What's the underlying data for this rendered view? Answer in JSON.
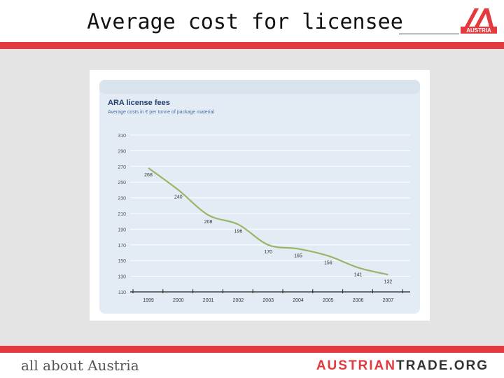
{
  "slide": {
    "title": "Average cost for licensee",
    "footer_left": "all about Austria",
    "footer_right_part1": "AUSTRIAN",
    "footer_right_part2": "TRADE.ORG",
    "logo_text": "AUSTRIA"
  },
  "colors": {
    "accent": "#e23a3f",
    "chart_panel": "#e3ebf4",
    "chart_header": "#d9e3ee",
    "line": "#9ab56a",
    "title_text": "#23406e"
  },
  "chart_data": {
    "type": "line",
    "title": "ARA license fees",
    "subtitle": "Average costs in € per tonne of package material",
    "categories": [
      "1999",
      "2000",
      "2001",
      "2002",
      "2003",
      "2004",
      "2005",
      "2006",
      "2007"
    ],
    "yticks": [
      110,
      130,
      150,
      170,
      190,
      210,
      230,
      250,
      270,
      290,
      310
    ],
    "ylim": [
      110,
      310
    ],
    "series": [
      {
        "values": [
          268,
          240,
          208,
          196,
          170,
          165,
          156,
          141,
          132
        ]
      }
    ],
    "data_labels": [
      "268",
      "240",
      "208",
      "196",
      "170",
      "165",
      "156",
      "141",
      "132"
    ],
    "grid": true
  }
}
